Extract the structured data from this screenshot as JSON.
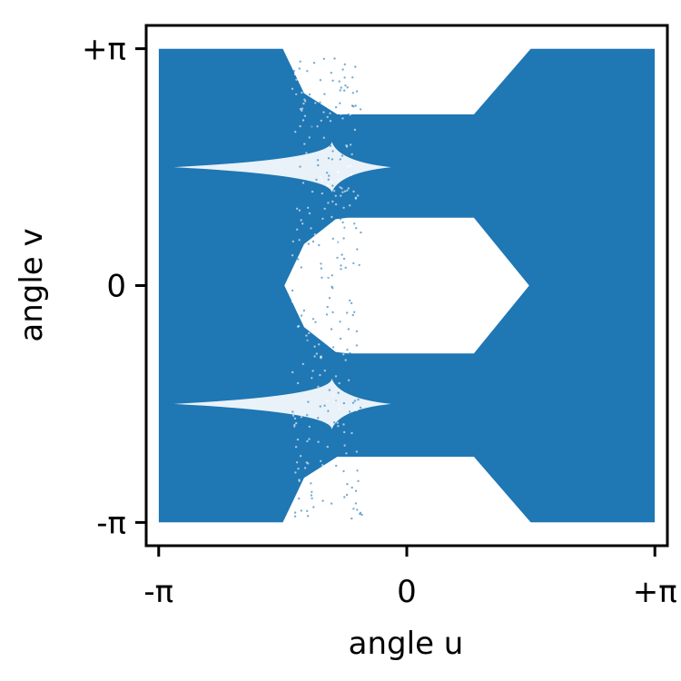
{
  "chart_data": {
    "type": "scatter",
    "title": "",
    "xlabel": "angle u",
    "ylabel": "angle v",
    "xlim": [
      -3.3,
      3.3
    ],
    "ylim": [
      -3.45,
      3.45
    ],
    "xticks": [
      {
        "value": -3.14159,
        "label": "-π"
      },
      {
        "value": 0,
        "label": "0"
      },
      {
        "value": 3.14159,
        "label": "+π"
      }
    ],
    "yticks": [
      {
        "value": -3.14159,
        "label": "-π"
      },
      {
        "value": 0,
        "label": "0"
      },
      {
        "value": 3.14159,
        "label": "+π"
      }
    ],
    "grid": false,
    "legend": "none",
    "point_color": "#1f77b4",
    "series": [
      {
        "description_of_region": "filled",
        "outer_boundary": [
          [
            -3.14,
            3.14
          ],
          [
            -1.57,
            3.14
          ],
          [
            -1.3,
            2.55
          ],
          [
            -0.88,
            2.27
          ],
          [
            0.85,
            2.27
          ],
          [
            1.57,
            3.14
          ],
          [
            3.14,
            3.14
          ],
          [
            3.14,
            -3.14
          ],
          [
            1.57,
            -3.14
          ],
          [
            0.85,
            -2.27
          ],
          [
            -0.88,
            -2.27
          ],
          [
            -1.3,
            -2.55
          ],
          [
            -1.57,
            -3.14
          ],
          [
            -3.14,
            -3.14
          ]
        ],
        "inner_hole": [
          [
            -1.55,
            0
          ],
          [
            -1.3,
            0.55
          ],
          [
            -0.9,
            0.88
          ],
          [
            -0.75,
            0.9
          ],
          [
            0.85,
            0.9
          ],
          [
            1.55,
            0
          ]
        ],
        "spike_rows": [
          1.57,
          -1.57
        ],
        "spike_from_x": -2.95,
        "spike_to_x": -0.2
      }
    ]
  }
}
